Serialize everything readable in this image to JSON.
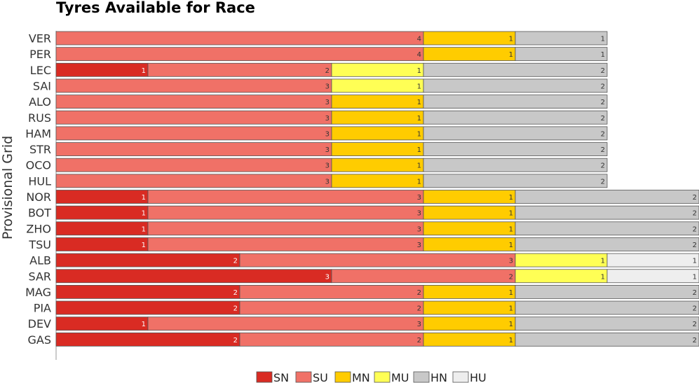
{
  "chart_data": {
    "type": "bar",
    "orientation": "horizontal",
    "stacked": true,
    "title": "Tyres Available for Race",
    "ylabel": "Provisional Grid",
    "xlabel": "",
    "categories": [
      "VER",
      "PER",
      "LEC",
      "SAI",
      "ALO",
      "RUS",
      "HAM",
      "STR",
      "OCO",
      "HUL",
      "NOR",
      "BOT",
      "ZHO",
      "TSU",
      "ALB",
      "SAR",
      "MAG",
      "PIA",
      "DEV",
      "GAS"
    ],
    "series": [
      {
        "name": "SN",
        "color": "#d92b23",
        "values": [
          0,
          0,
          1,
          0,
          0,
          0,
          0,
          0,
          0,
          0,
          1,
          1,
          1,
          1,
          2,
          3,
          2,
          2,
          1,
          2
        ]
      },
      {
        "name": "SU",
        "color": "#f07167",
        "values": [
          4,
          4,
          2,
          3,
          3,
          3,
          3,
          3,
          3,
          3,
          3,
          3,
          3,
          3,
          3,
          2,
          2,
          2,
          3,
          2
        ]
      },
      {
        "name": "MN",
        "color": "#ffcc00",
        "values": [
          1,
          1,
          0,
          0,
          1,
          1,
          1,
          1,
          1,
          1,
          1,
          1,
          1,
          1,
          0,
          0,
          1,
          1,
          1,
          1
        ]
      },
      {
        "name": "MU",
        "color": "#ffff55",
        "values": [
          0,
          0,
          1,
          1,
          0,
          0,
          0,
          0,
          0,
          0,
          0,
          0,
          0,
          0,
          1,
          1,
          0,
          0,
          0,
          0
        ]
      },
      {
        "name": "HN",
        "color": "#c8c8c8",
        "values": [
          1,
          1,
          2,
          2,
          2,
          2,
          2,
          2,
          2,
          2,
          2,
          2,
          2,
          2,
          0,
          0,
          2,
          2,
          2,
          2
        ]
      },
      {
        "name": "HU",
        "color": "#eeeeee",
        "values": [
          0,
          0,
          0,
          0,
          0,
          0,
          0,
          0,
          0,
          0,
          0,
          0,
          0,
          0,
          1,
          1,
          0,
          0,
          0,
          0
        ]
      }
    ],
    "xlim": [
      0,
      7
    ],
    "grid": false,
    "legend_position": "bottom"
  }
}
